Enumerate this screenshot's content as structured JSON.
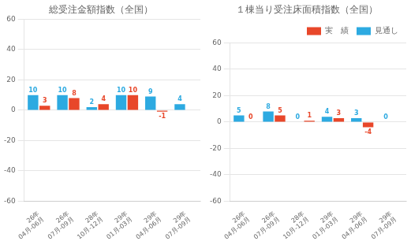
{
  "chart_data": [
    {
      "type": "bar",
      "title": "総受注金額指数（全国）",
      "categories": [
        "26年\n04月-06月",
        "26年\n07月-09月",
        "28年\n10月-12月",
        "29年\n01月-03月",
        "29年\n04月-06月",
        "29年\n07月-09月"
      ],
      "series": [
        {
          "name": "見通し",
          "color": "#2daae1",
          "values": [
            10,
            10,
            2,
            10,
            9,
            4
          ]
        },
        {
          "name": "実　績",
          "color": "#e8472a",
          "values": [
            3,
            8,
            4,
            10,
            -1,
            null
          ]
        }
      ],
      "ylim": [
        -60,
        60
      ],
      "yticks": [
        -60,
        -40,
        -20,
        0,
        20,
        40,
        60
      ],
      "grid": true,
      "data_labels": true
    },
    {
      "type": "bar",
      "title": "１棟当り受注床面積指数（全国）",
      "categories": [
        "26年\n04月-06月",
        "26年\n07月-09月",
        "28年\n10月-12月",
        "29年\n01月-03月",
        "29年\n04月-06月",
        "29年\n07月-09月"
      ],
      "series": [
        {
          "name": "見通し",
          "color": "#2daae1",
          "values": [
            5,
            8,
            0,
            4,
            3,
            0
          ]
        },
        {
          "name": "実　績",
          "color": "#e8472a",
          "values": [
            0,
            5,
            1,
            3,
            -4,
            null
          ]
        }
      ],
      "ylim": [
        -60,
        60
      ],
      "yticks": [
        -60,
        -40,
        -20,
        0,
        20,
        40,
        60
      ],
      "grid": true,
      "data_labels": true,
      "legend": "upper right"
    }
  ]
}
